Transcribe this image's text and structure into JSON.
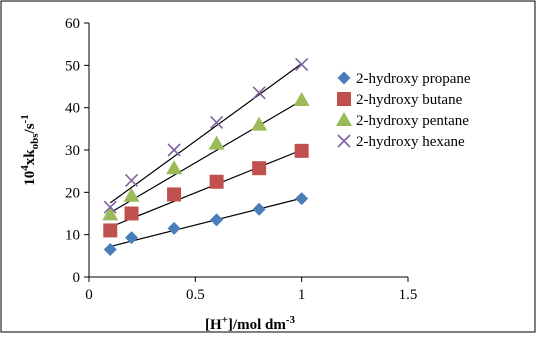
{
  "chart_data": {
    "type": "scatter",
    "x": [
      0.1,
      0.2,
      0.4,
      0.6,
      0.8,
      1.0
    ],
    "series": [
      {
        "name": "2-hydroxy propane",
        "values": [
          6.5,
          9.3,
          11.5,
          13.5,
          16,
          18.5
        ],
        "color": "#4a7ebb",
        "marker": "diamond",
        "trend": [
          0.1,
          7.2,
          1.0,
          18.6
        ]
      },
      {
        "name": "2-hydroxy butane",
        "values": [
          11,
          15,
          19.5,
          22.5,
          25.7,
          29.8
        ],
        "color": "#c0504d",
        "marker": "square",
        "trend": [
          0.1,
          11.8,
          1.0,
          30.0
        ]
      },
      {
        "name": "2-hydroxy pentane",
        "values": [
          14.8,
          19.2,
          25.7,
          31.5,
          36,
          41.8
        ],
        "color": "#9bbb59",
        "marker": "triangle",
        "trend": [
          0.1,
          15.2,
          1.0,
          41.7
        ]
      },
      {
        "name": "2-hydroxy hexane",
        "values": [
          16.5,
          22.8,
          30,
          36.5,
          43.5,
          50.2
        ],
        "color": "#8064a2",
        "marker": "x",
        "trend": [
          0.1,
          17.5,
          1.0,
          50.4
        ]
      }
    ],
    "xlim": [
      0,
      1.5
    ],
    "ylim": [
      0,
      60
    ],
    "xticks": [
      "0",
      "0.5",
      "1",
      "1.5"
    ],
    "yticks": [
      "0",
      "10",
      "20",
      "30",
      "40",
      "50",
      "60"
    ],
    "xlabel": {
      "main": "[H",
      "sup1": "+",
      "mid": "]/mol dm",
      "sup2": "-3"
    },
    "ylabel": {
      "pre": "10",
      "sup1": "4",
      "mid": "xk",
      "sub": "obs",
      "post": "/s",
      "sup2": "-1"
    },
    "legend_position": "right",
    "grid": false,
    "trendlines": true
  }
}
